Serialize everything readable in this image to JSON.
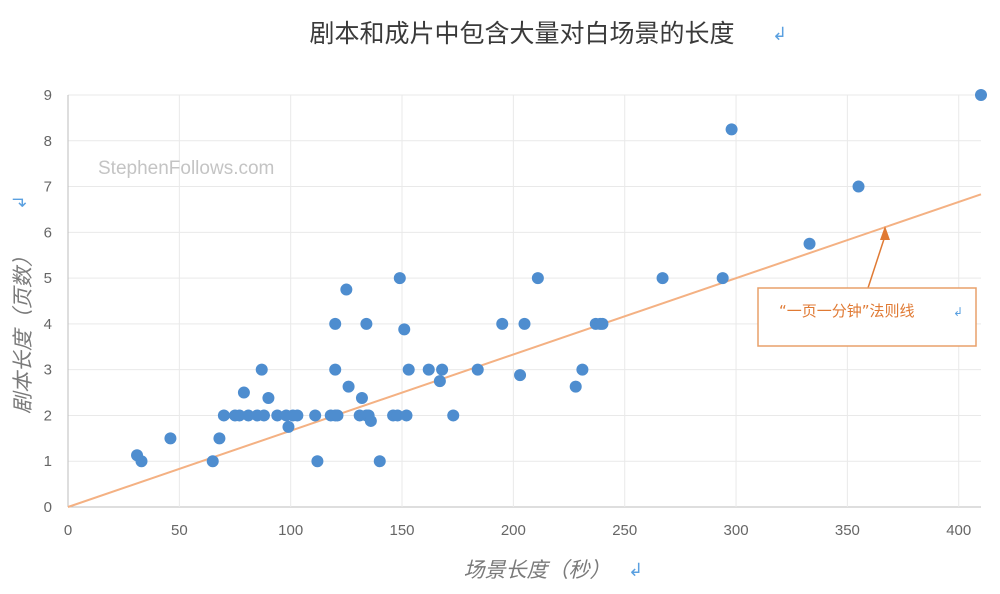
{
  "chart_data": {
    "type": "scatter",
    "title": "剧本和成片中包含大量对白场景的长度",
    "xlabel": "场景长度（秒）",
    "ylabel": "剧本长度（页数）",
    "watermark": "StephenFollows.com",
    "xlim": [
      0,
      410
    ],
    "ylim": [
      0,
      9
    ],
    "x_ticks": [
      "0",
      "50",
      "100",
      "150",
      "200",
      "250",
      "300",
      "350",
      "400"
    ],
    "y_ticks": [
      "0",
      "1",
      "2",
      "3",
      "4",
      "5",
      "6",
      "7",
      "8",
      "9"
    ],
    "grid": true,
    "point_color": "#4e8dcf",
    "line_color": "#f4b183",
    "annotation_color": "#e07a34",
    "trendline": {
      "label": "“一页一分钟”法则线",
      "x": [
        0,
        410
      ],
      "y": [
        0,
        6.83
      ]
    },
    "points": [
      {
        "x": 31,
        "y": 1.13
      },
      {
        "x": 33,
        "y": 1.0
      },
      {
        "x": 46,
        "y": 1.5
      },
      {
        "x": 65,
        "y": 1.0
      },
      {
        "x": 68,
        "y": 1.5
      },
      {
        "x": 70,
        "y": 2.0
      },
      {
        "x": 75,
        "y": 2.0
      },
      {
        "x": 77,
        "y": 2.0
      },
      {
        "x": 79,
        "y": 2.5
      },
      {
        "x": 81,
        "y": 2.0
      },
      {
        "x": 85,
        "y": 2.0
      },
      {
        "x": 87,
        "y": 3.0
      },
      {
        "x": 88,
        "y": 2.0
      },
      {
        "x": 90,
        "y": 2.38
      },
      {
        "x": 94,
        "y": 2.0
      },
      {
        "x": 98,
        "y": 2.0
      },
      {
        "x": 99,
        "y": 1.75
      },
      {
        "x": 101,
        "y": 2.0
      },
      {
        "x": 103,
        "y": 2.0
      },
      {
        "x": 111,
        "y": 2.0
      },
      {
        "x": 112,
        "y": 1.0
      },
      {
        "x": 118,
        "y": 2.0
      },
      {
        "x": 120,
        "y": 2.0
      },
      {
        "x": 120,
        "y": 3.0
      },
      {
        "x": 120,
        "y": 4.0
      },
      {
        "x": 121,
        "y": 2.0
      },
      {
        "x": 125,
        "y": 4.75
      },
      {
        "x": 126,
        "y": 2.63
      },
      {
        "x": 131,
        "y": 2.0
      },
      {
        "x": 132,
        "y": 2.38
      },
      {
        "x": 134,
        "y": 4.0
      },
      {
        "x": 134,
        "y": 2.0
      },
      {
        "x": 135,
        "y": 2.0
      },
      {
        "x": 136,
        "y": 1.88
      },
      {
        "x": 140,
        "y": 1.0
      },
      {
        "x": 146,
        "y": 2.0
      },
      {
        "x": 148,
        "y": 2.0
      },
      {
        "x": 149,
        "y": 5.0
      },
      {
        "x": 151,
        "y": 3.88
      },
      {
        "x": 152,
        "y": 2.0
      },
      {
        "x": 153,
        "y": 3.0
      },
      {
        "x": 162,
        "y": 3.0
      },
      {
        "x": 167,
        "y": 2.75
      },
      {
        "x": 168,
        "y": 3.0
      },
      {
        "x": 173,
        "y": 2.0
      },
      {
        "x": 184,
        "y": 3.0
      },
      {
        "x": 195,
        "y": 4.0
      },
      {
        "x": 203,
        "y": 2.88
      },
      {
        "x": 205,
        "y": 4.0
      },
      {
        "x": 211,
        "y": 5.0
      },
      {
        "x": 228,
        "y": 2.63
      },
      {
        "x": 231,
        "y": 3.0
      },
      {
        "x": 237,
        "y": 4.0
      },
      {
        "x": 239,
        "y": 4.0
      },
      {
        "x": 240,
        "y": 4.0
      },
      {
        "x": 267,
        "y": 5.0
      },
      {
        "x": 294,
        "y": 5.0
      },
      {
        "x": 298,
        "y": 8.25
      },
      {
        "x": 333,
        "y": 5.75
      },
      {
        "x": 355,
        "y": 7.0
      },
      {
        "x": 410,
        "y": 9.0
      }
    ]
  }
}
